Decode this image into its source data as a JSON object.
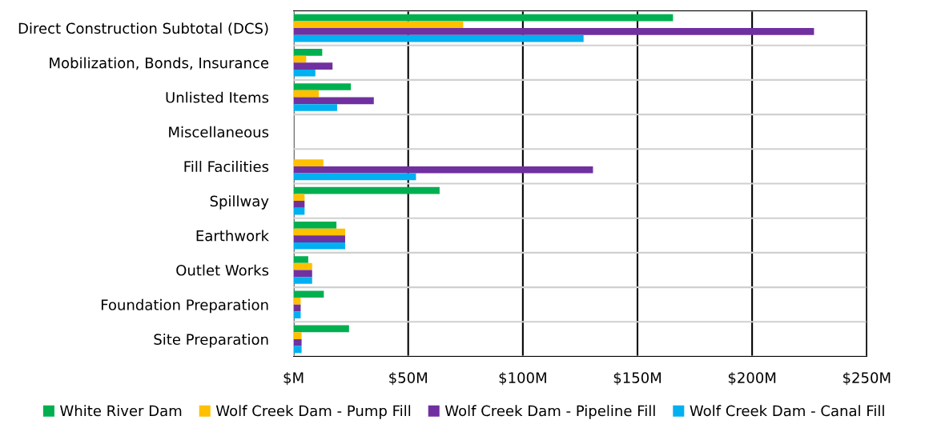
{
  "chart_data": {
    "type": "bar",
    "orientation": "horizontal",
    "categories": [
      "Direct Construction Subtotal (DCS)",
      "Mobilization, Bonds, Insurance",
      "Unlisted Items",
      "Miscellaneous",
      "Fill Facilities",
      "Spillway",
      "Earthwork",
      "Outlet Works",
      "Foundation Preparation",
      "Site Preparation"
    ],
    "series": [
      {
        "name": "White River Dam",
        "color": "#00b050",
        "values": [
          165.5,
          12.5,
          25,
          0,
          0,
          63.7,
          18.7,
          6.4,
          13.2,
          24.2
        ]
      },
      {
        "name": "Wolf Creek Dam - Pump Fill",
        "color": "#ffc000",
        "values": [
          74,
          5.5,
          11,
          0,
          13,
          4.8,
          22.5,
          8.1,
          3.1,
          3.5
        ]
      },
      {
        "name": "Wolf Creek Dam - Pipeline Fill",
        "color": "#7030a0",
        "values": [
          227,
          17,
          35,
          0,
          130.6,
          4.8,
          22.5,
          8.1,
          3.1,
          3.5
        ]
      },
      {
        "name": "Wolf Creek Dam - Canal Fill",
        "color": "#00b0f0",
        "values": [
          126.5,
          9.5,
          19,
          0,
          53.4,
          4.8,
          22.5,
          8.1,
          3.1,
          3.5
        ]
      }
    ],
    "xlim": [
      0,
      250
    ],
    "xticks": [
      {
        "value": 0,
        "label": "$M"
      },
      {
        "value": 50,
        "label": "$50M"
      },
      {
        "value": 100,
        "label": "$100M"
      },
      {
        "value": 150,
        "label": "$150M"
      },
      {
        "value": 200,
        "label": "$200M"
      },
      {
        "value": 250,
        "label": "$250M"
      }
    ],
    "grid": true,
    "legend": "bottom"
  }
}
